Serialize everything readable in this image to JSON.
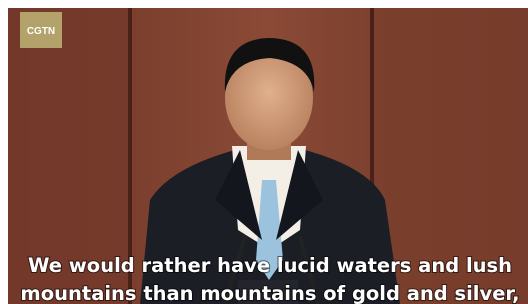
{
  "logo": "CGTN",
  "subtitle": {
    "lines": [
      "We would rather have lucid waters and lush",
      "mountains than mountains of gold and silver,"
    ]
  }
}
